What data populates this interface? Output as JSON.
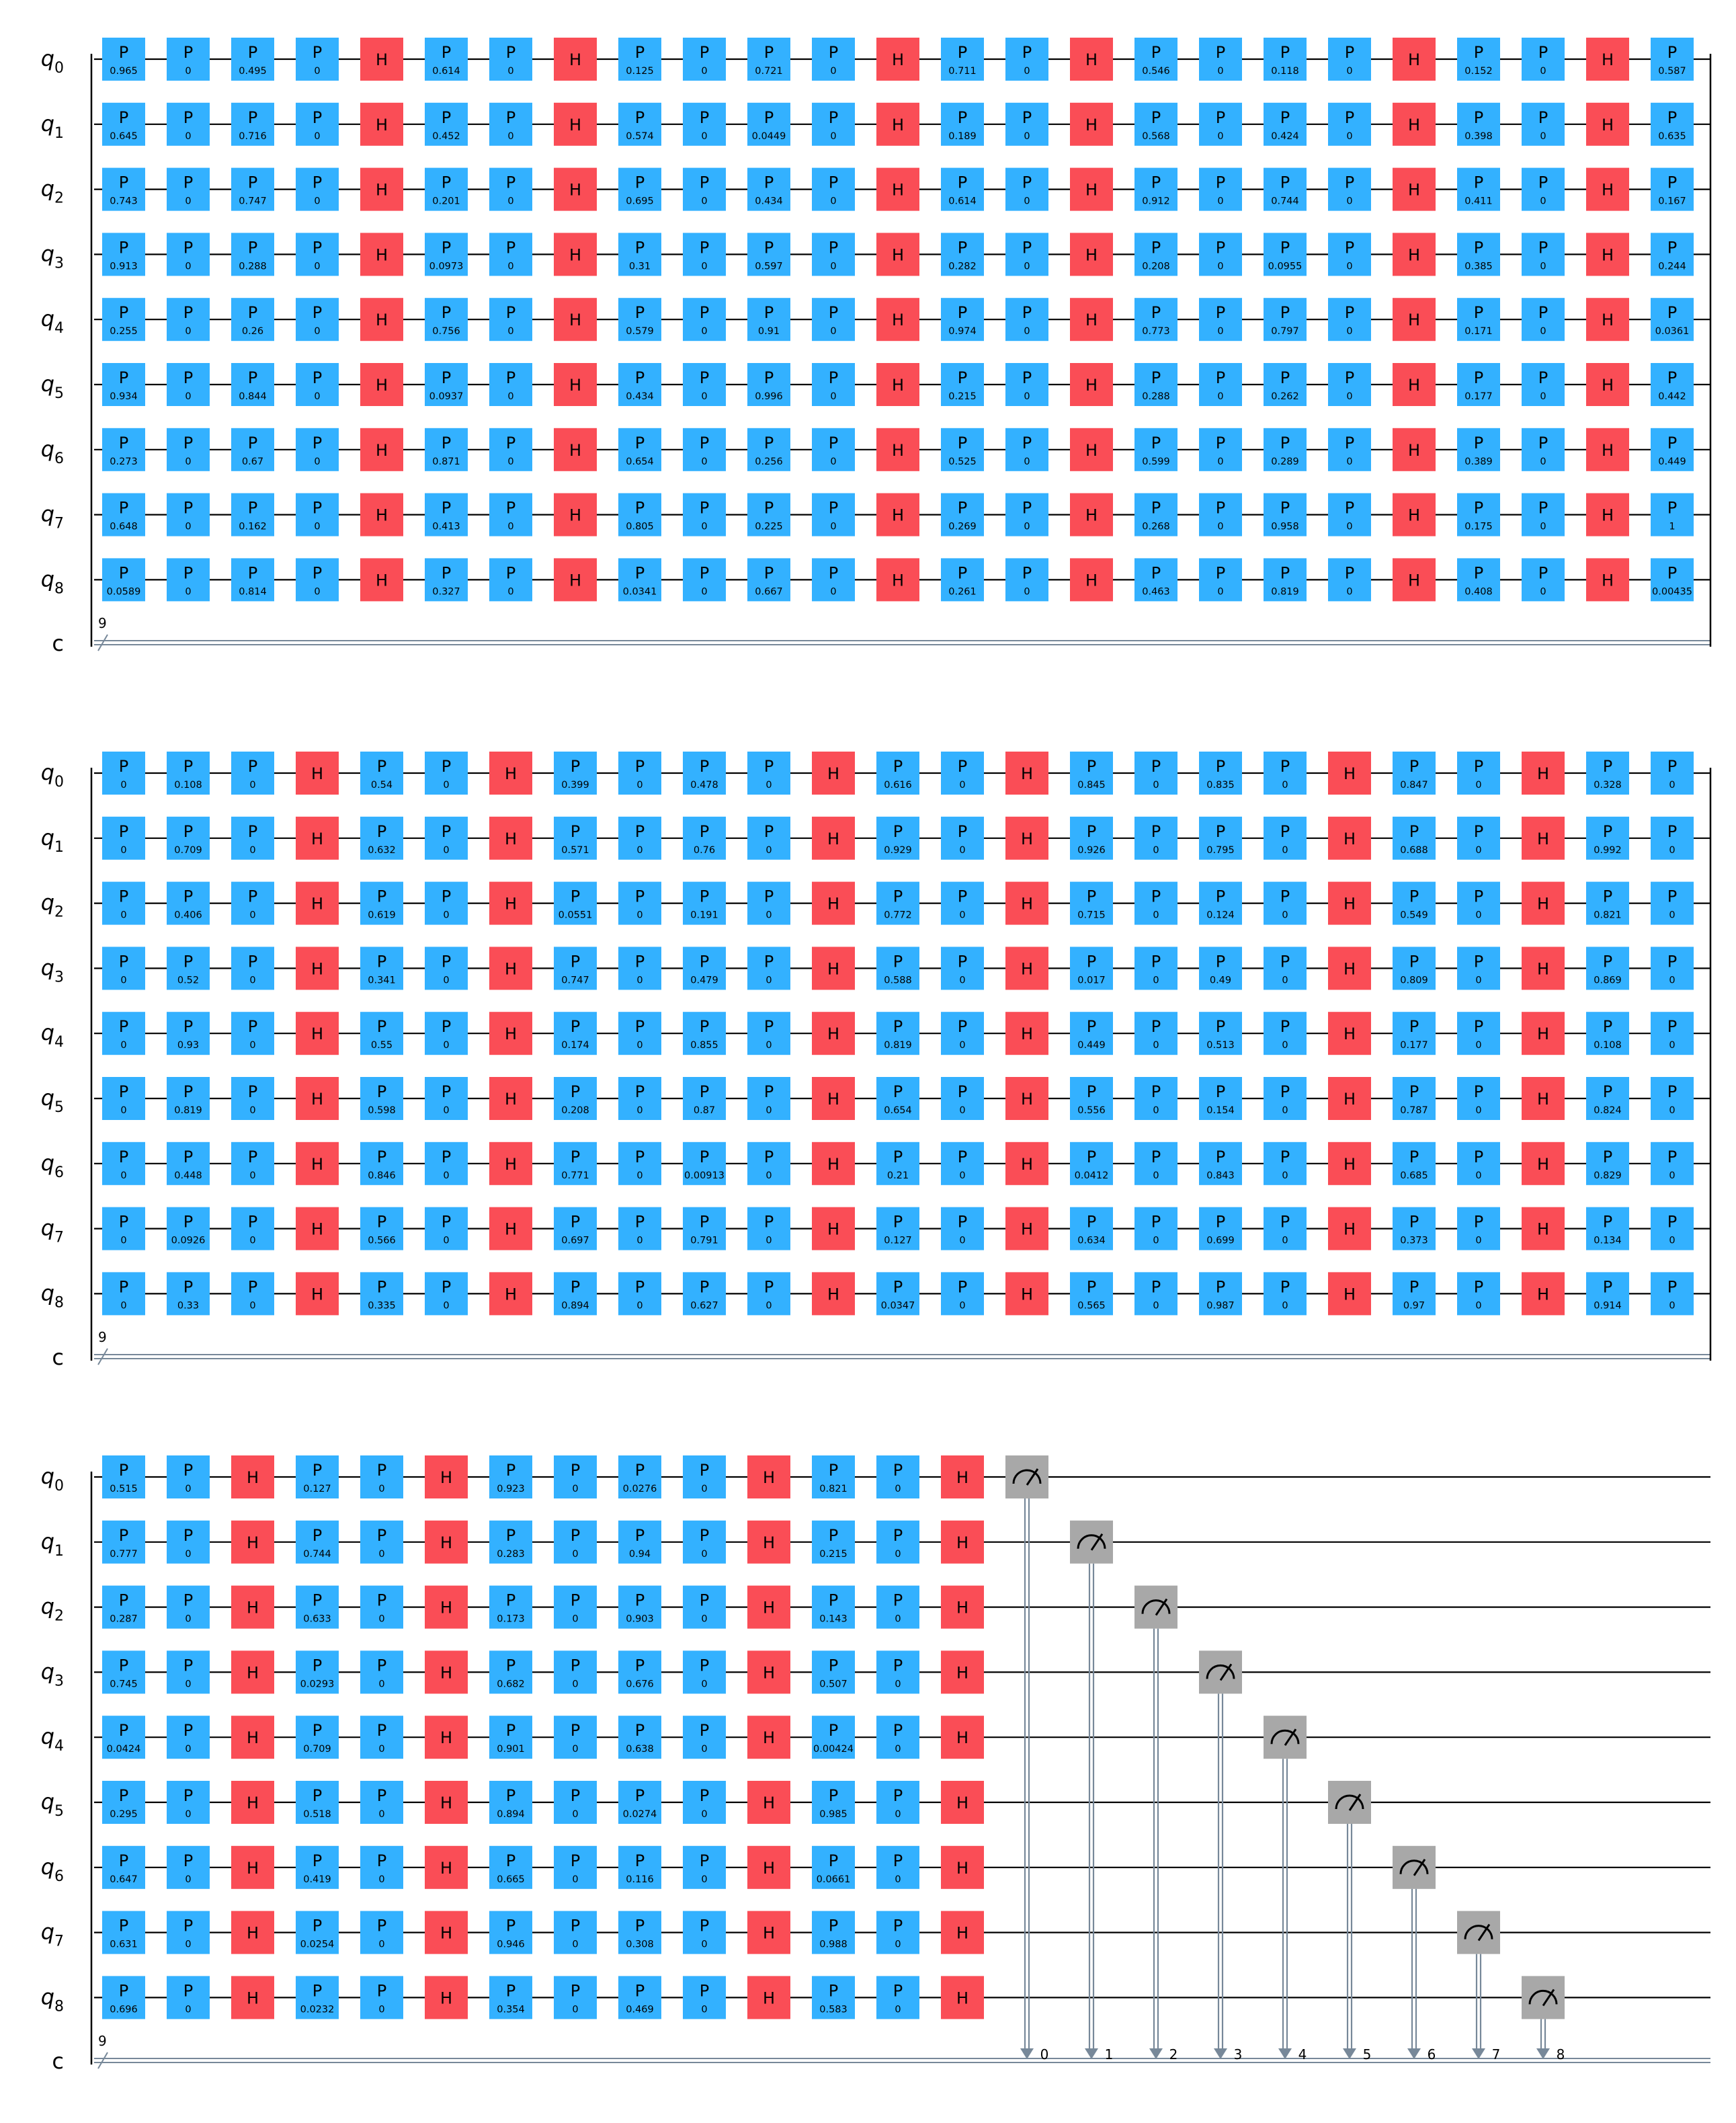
{
  "colors": {
    "p_gate": "#33b1ff",
    "h_gate": "#fa4d56",
    "measure": "#a8a8a8",
    "wire": "#000000",
    "classical": "#778899"
  },
  "qubit_prefix": "q",
  "classical_label": "c",
  "classical_bits": "9",
  "measure_icon": "meter-icon",
  "measure_indices": [
    "0",
    "1",
    "2",
    "3",
    "4",
    "5",
    "6",
    "7",
    "8"
  ],
  "p_label": "P",
  "h_label": "H",
  "rows": [
    {
      "name": "row-1",
      "gates": [
        [
          "0.965",
          "0.645",
          "0.743",
          "0.913",
          "0.255",
          "0.934",
          "0.273",
          "0.648",
          "0.0589"
        ],
        [
          "0",
          "0",
          "0",
          "0",
          "0",
          "0",
          "0",
          "0",
          "0"
        ],
        [
          "0.495",
          "0.716",
          "0.747",
          "0.288",
          "0.26",
          "0.844",
          "0.67",
          "0.162",
          "0.814"
        ],
        [
          "0",
          "0",
          "0",
          "0",
          "0",
          "0",
          "0",
          "0",
          "0"
        ],
        "H",
        [
          "0.614",
          "0.452",
          "0.201",
          "0.0973",
          "0.756",
          "0.0937",
          "0.871",
          "0.413",
          "0.327"
        ],
        [
          "0",
          "0",
          "0",
          "0",
          "0",
          "0",
          "0",
          "0",
          "0"
        ],
        "H",
        [
          "0.125",
          "0.574",
          "0.695",
          "0.31",
          "0.579",
          "0.434",
          "0.654",
          "0.805",
          "0.0341"
        ],
        [
          "0",
          "0",
          "0",
          "0",
          "0",
          "0",
          "0",
          "0",
          "0"
        ],
        [
          "0.721",
          "0.0449",
          "0.434",
          "0.597",
          "0.91",
          "0.996",
          "0.256",
          "0.225",
          "0.667"
        ],
        [
          "0",
          "0",
          "0",
          "0",
          "0",
          "0",
          "0",
          "0",
          "0"
        ],
        "H",
        [
          "0.711",
          "0.189",
          "0.614",
          "0.282",
          "0.974",
          "0.215",
          "0.525",
          "0.269",
          "0.261"
        ],
        [
          "0",
          "0",
          "0",
          "0",
          "0",
          "0",
          "0",
          "0",
          "0"
        ],
        "H",
        [
          "0.546",
          "0.568",
          "0.912",
          "0.208",
          "0.773",
          "0.288",
          "0.599",
          "0.268",
          "0.463"
        ],
        [
          "0",
          "0",
          "0",
          "0",
          "0",
          "0",
          "0",
          "0",
          "0"
        ],
        [
          "0.118",
          "0.424",
          "0.744",
          "0.0955",
          "0.797",
          "0.262",
          "0.289",
          "0.958",
          "0.819"
        ],
        [
          "0",
          "0",
          "0",
          "0",
          "0",
          "0",
          "0",
          "0",
          "0"
        ],
        "H",
        [
          "0.152",
          "0.398",
          "0.411",
          "0.385",
          "0.171",
          "0.177",
          "0.389",
          "0.175",
          "0.408"
        ],
        [
          "0",
          "0",
          "0",
          "0",
          "0",
          "0",
          "0",
          "0",
          "0"
        ],
        "H",
        [
          "0.587",
          "0.635",
          "0.167",
          "0.244",
          "0.0361",
          "0.442",
          "0.449",
          "1",
          "0.00435"
        ]
      ]
    },
    {
      "name": "row-2",
      "gates": [
        [
          "0",
          "0",
          "0",
          "0",
          "0",
          "0",
          "0",
          "0",
          "0"
        ],
        [
          "0.108",
          "0.709",
          "0.406",
          "0.52",
          "0.93",
          "0.819",
          "0.448",
          "0.0926",
          "0.33"
        ],
        [
          "0",
          "0",
          "0",
          "0",
          "0",
          "0",
          "0",
          "0",
          "0"
        ],
        "H",
        [
          "0.54",
          "0.632",
          "0.619",
          "0.341",
          "0.55",
          "0.598",
          "0.846",
          "0.566",
          "0.335"
        ],
        [
          "0",
          "0",
          "0",
          "0",
          "0",
          "0",
          "0",
          "0",
          "0"
        ],
        "H",
        [
          "0.399",
          "0.571",
          "0.0551",
          "0.747",
          "0.174",
          "0.208",
          "0.771",
          "0.697",
          "0.894"
        ],
        [
          "0",
          "0",
          "0",
          "0",
          "0",
          "0",
          "0",
          "0",
          "0"
        ],
        [
          "0.478",
          "0.76",
          "0.191",
          "0.479",
          "0.855",
          "0.87",
          "0.00913",
          "0.791",
          "0.627"
        ],
        [
          "0",
          "0",
          "0",
          "0",
          "0",
          "0",
          "0",
          "0",
          "0"
        ],
        "H",
        [
          "0.616",
          "0.929",
          "0.772",
          "0.588",
          "0.819",
          "0.654",
          "0.21",
          "0.127",
          "0.0347"
        ],
        [
          "0",
          "0",
          "0",
          "0",
          "0",
          "0",
          "0",
          "0",
          "0"
        ],
        "H",
        [
          "0.845",
          "0.926",
          "0.715",
          "0.017",
          "0.449",
          "0.556",
          "0.0412",
          "0.634",
          "0.565"
        ],
        [
          "0",
          "0",
          "0",
          "0",
          "0",
          "0",
          "0",
          "0",
          "0"
        ],
        [
          "0.835",
          "0.795",
          "0.124",
          "0.49",
          "0.513",
          "0.154",
          "0.843",
          "0.699",
          "0.987"
        ],
        [
          "0",
          "0",
          "0",
          "0",
          "0",
          "0",
          "0",
          "0",
          "0"
        ],
        "H",
        [
          "0.847",
          "0.688",
          "0.549",
          "0.809",
          "0.177",
          "0.787",
          "0.685",
          "0.373",
          "0.97"
        ],
        [
          "0",
          "0",
          "0",
          "0",
          "0",
          "0",
          "0",
          "0",
          "0"
        ],
        "H",
        [
          "0.328",
          "0.992",
          "0.821",
          "0.869",
          "0.108",
          "0.824",
          "0.829",
          "0.134",
          "0.914"
        ],
        [
          "0",
          "0",
          "0",
          "0",
          "0",
          "0",
          "0",
          "0",
          "0"
        ]
      ]
    },
    {
      "name": "row-3",
      "gates": [
        [
          "0.515",
          "0.777",
          "0.287",
          "0.745",
          "0.0424",
          "0.295",
          "0.647",
          "0.631",
          "0.696"
        ],
        [
          "0",
          "0",
          "0",
          "0",
          "0",
          "0",
          "0",
          "0",
          "0"
        ],
        "H",
        [
          "0.127",
          "0.744",
          "0.633",
          "0.0293",
          "0.709",
          "0.518",
          "0.419",
          "0.0254",
          "0.0232"
        ],
        [
          "0",
          "0",
          "0",
          "0",
          "0",
          "0",
          "0",
          "0",
          "0"
        ],
        "H",
        [
          "0.923",
          "0.283",
          "0.173",
          "0.682",
          "0.901",
          "0.894",
          "0.665",
          "0.946",
          "0.354"
        ],
        [
          "0",
          "0",
          "0",
          "0",
          "0",
          "0",
          "0",
          "0",
          "0"
        ],
        [
          "0.0276",
          "0.94",
          "0.903",
          "0.676",
          "0.638",
          "0.0274",
          "0.116",
          "0.308",
          "0.469"
        ],
        [
          "0",
          "0",
          "0",
          "0",
          "0",
          "0",
          "0",
          "0",
          "0"
        ],
        "H",
        [
          "0.821",
          "0.215",
          "0.143",
          "0.507",
          "0.00424",
          "0.985",
          "0.0661",
          "0.988",
          "0.583"
        ],
        [
          "0",
          "0",
          "0",
          "0",
          "0",
          "0",
          "0",
          "0",
          "0"
        ],
        "H"
      ],
      "measurements": true
    }
  ]
}
